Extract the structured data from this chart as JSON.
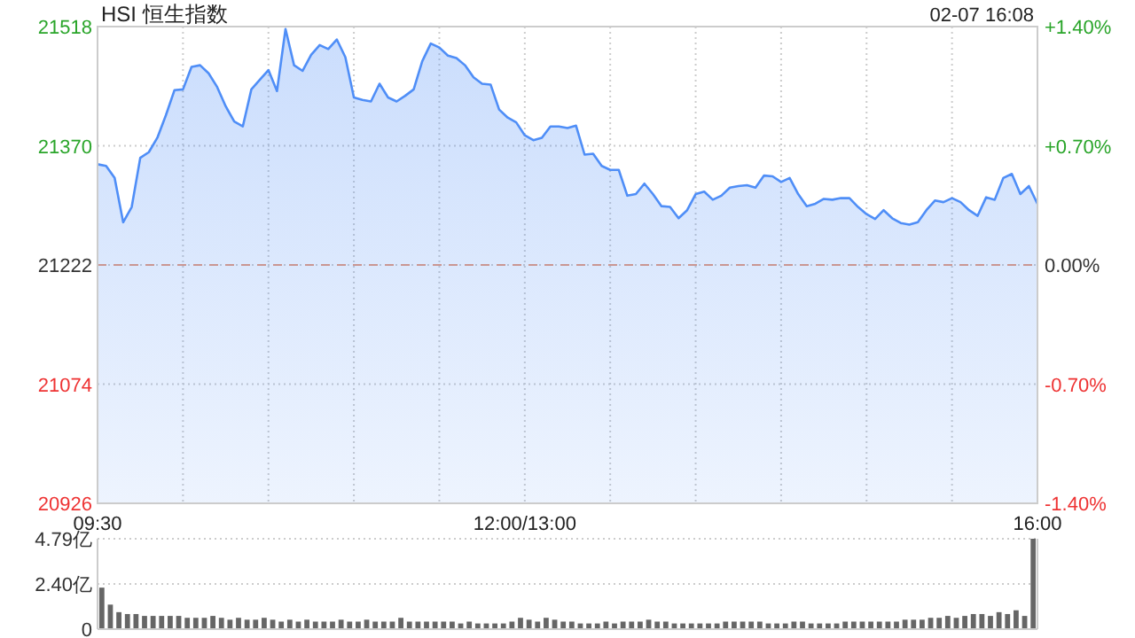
{
  "chart_data": [
    {
      "type": "area",
      "title": "HSI 恒生指数",
      "annotations": [
        "02-07 16:08"
      ],
      "color": "#4f8ef7",
      "categories": [
        "09:30",
        null,
        null,
        null,
        null,
        null,
        null,
        null,
        null,
        null,
        null,
        null,
        null,
        null,
        null,
        null,
        null,
        null,
        null,
        null,
        null,
        null,
        null,
        null,
        null,
        null,
        null,
        null,
        null,
        null,
        null,
        null,
        null,
        null,
        null,
        null,
        null,
        null,
        null,
        null,
        null,
        null,
        null,
        null,
        null,
        null,
        null,
        null,
        null,
        null,
        "12:00/13:00",
        null,
        null,
        null,
        null,
        null,
        null,
        null,
        null,
        null,
        null,
        null,
        null,
        null,
        null,
        null,
        null,
        null,
        null,
        null,
        null,
        null,
        null,
        null,
        null,
        null,
        null,
        null,
        null,
        null,
        null,
        null,
        null,
        null,
        null,
        null,
        null,
        null,
        null,
        null,
        null,
        null,
        null,
        null,
        null,
        null,
        null,
        null,
        null,
        null,
        null,
        null,
        null,
        null,
        null,
        null,
        null,
        null,
        null,
        null,
        "16:00"
      ],
      "values": [
        21347,
        21345,
        21330,
        21275,
        21294,
        21355,
        21362,
        21380,
        21408,
        21439,
        21440,
        21468,
        21470,
        21460,
        21443,
        21419,
        21400,
        21394,
        21440,
        21452,
        21464,
        21438,
        21515,
        21470,
        21463,
        21483,
        21495,
        21490,
        21502,
        21480,
        21430,
        21427,
        21425,
        21447,
        21430,
        21425,
        21432,
        21440,
        21475,
        21497,
        21492,
        21482,
        21479,
        21470,
        21455,
        21447,
        21446,
        21415,
        21405,
        21399,
        21383,
        21377,
        21380,
        21394,
        21394,
        21392,
        21395,
        21359,
        21360,
        21345,
        21340,
        21340,
        21308,
        21310,
        21323,
        21310,
        21295,
        21294,
        21280,
        21290,
        21310,
        21313,
        21303,
        21308,
        21318,
        21320,
        21321,
        21318,
        21333,
        21332,
        21325,
        21330,
        21310,
        21295,
        21298,
        21304,
        21303,
        21305,
        21305,
        21294,
        21285,
        21279,
        21290,
        21280,
        21274,
        21272,
        21275,
        21290,
        21302,
        21300,
        21305,
        21300,
        21290,
        21283,
        21306,
        21303,
        21330,
        21335,
        21310,
        21320,
        21298
      ],
      "ylim": [
        20926,
        21518
      ],
      "yticks": [
        20926,
        21074,
        21222,
        21370,
        21518
      ],
      "y2lim": [
        -1.4,
        1.4
      ],
      "y2ticks": [
        {
          "value": -1.4,
          "label": "-1.40%"
        },
        {
          "value": -0.7,
          "label": "-0.70%"
        },
        {
          "value": 0,
          "label": "0.00%"
        },
        {
          "value": 0.7,
          "label": "+0.70%"
        },
        {
          "value": 1.4,
          "label": "+1.40%"
        }
      ],
      "ref_lines": [
        {
          "axis": "y",
          "value": 21222,
          "color": "#e8997a",
          "line_style": "dashed"
        }
      ],
      "grid": true
    },
    {
      "type": "bar",
      "color": "#666666",
      "tick_labels": "y",
      "grid": "y",
      "categories": [
        null,
        null,
        null,
        null,
        null,
        null,
        null,
        null,
        null,
        null,
        null,
        null,
        null,
        null,
        null,
        null,
        null,
        null,
        null,
        null,
        null,
        null,
        null,
        null,
        null,
        null,
        null,
        null,
        null,
        null,
        null,
        null,
        null,
        null,
        null,
        null,
        null,
        null,
        null,
        null,
        null,
        null,
        null,
        null,
        null,
        null,
        null,
        null,
        null,
        null,
        null,
        null,
        null,
        null,
        null,
        null,
        null,
        null,
        null,
        null,
        null,
        null,
        null,
        null,
        null,
        null,
        null,
        null,
        null,
        null,
        null,
        null,
        null,
        null,
        null,
        null,
        null,
        null,
        null,
        null,
        null,
        null,
        null,
        null,
        null,
        null,
        null,
        null,
        null,
        null,
        null,
        null,
        null,
        null,
        null,
        null,
        null,
        null,
        null,
        null,
        null,
        null,
        null,
        null,
        null,
        null,
        null,
        null,
        null,
        null
      ],
      "values": [
        2.2,
        1.3,
        0.9,
        0.8,
        0.8,
        0.7,
        0.7,
        0.7,
        0.7,
        0.7,
        0.6,
        0.6,
        0.6,
        0.7,
        0.6,
        0.5,
        0.6,
        0.5,
        0.5,
        0.6,
        0.5,
        0.4,
        0.5,
        0.4,
        0.5,
        0.4,
        0.4,
        0.4,
        0.5,
        0.4,
        0.4,
        0.5,
        0.4,
        0.4,
        0.4,
        0.6,
        0.4,
        0.4,
        0.4,
        0.4,
        0.4,
        0.4,
        0.3,
        0.4,
        0.3,
        0.3,
        0.3,
        0.3,
        0.4,
        0.6,
        0.5,
        0.4,
        0.6,
        0.5,
        0.4,
        0.4,
        0.3,
        0.3,
        0.3,
        0.4,
        0.3,
        0.4,
        0.4,
        0.4,
        0.5,
        0.4,
        0.4,
        0.3,
        0.3,
        0.3,
        0.3,
        0.3,
        0.3,
        0.4,
        0.4,
        0.4,
        0.4,
        0.4,
        0.3,
        0.3,
        0.3,
        0.4,
        0.4,
        0.3,
        0.3,
        0.3,
        0.3,
        0.4,
        0.4,
        0.4,
        0.4,
        0.4,
        0.4,
        0.4,
        0.5,
        0.5,
        0.5,
        0.6,
        0.6,
        0.7,
        0.6,
        0.7,
        0.8,
        0.8,
        0.7,
        0.9,
        0.8,
        1.0,
        0.7,
        4.79
      ],
      "ylim": [
        0,
        4.79
      ],
      "yticks": [
        0,
        {
          "value": 2.4,
          "label": "2.40亿"
        },
        {
          "value": 4.79,
          "label": "4.79亿"
        }
      ]
    }
  ]
}
